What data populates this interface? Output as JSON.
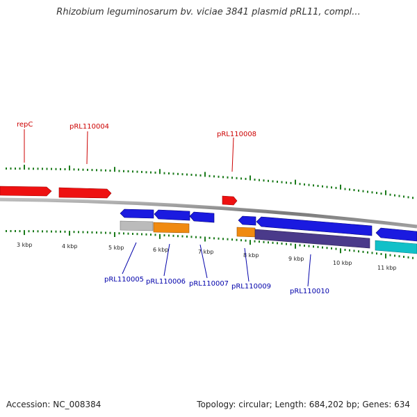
{
  "title": "Rhizobium leguminosarum bv. viciae 3841 plasmid pRL11, compl...",
  "footer": {
    "accession": "Accession: NC_008384",
    "summary": "Topology: circular; Length: 684,202 bp; Genes: 634"
  },
  "colors": {
    "backbone": "#8a8a8a",
    "tick": "#1a7a1a",
    "label_upper": "#cc0000",
    "label_lower": "#0000aa",
    "red": "#ee1111",
    "blue": "#1a1ae0",
    "gray": "#bbbbbb",
    "orange": "#f08a10",
    "purple": "#4a3a8a",
    "cyan": "#11c0c8"
  },
  "kbp_ticks": [
    "3 kbp",
    "4 kbp",
    "5 kbp",
    "6 kbp",
    "7 kbp",
    "8 kbp",
    "9 kbp",
    "10 kbp",
    "11 kbp"
  ],
  "upper_labels": [
    "repC",
    "pRL110004",
    "pRL110008"
  ],
  "lower_labels": [
    "pRL110005",
    "pRL110006",
    "pRL110007",
    "pRL110009",
    "pRL110010"
  ]
}
